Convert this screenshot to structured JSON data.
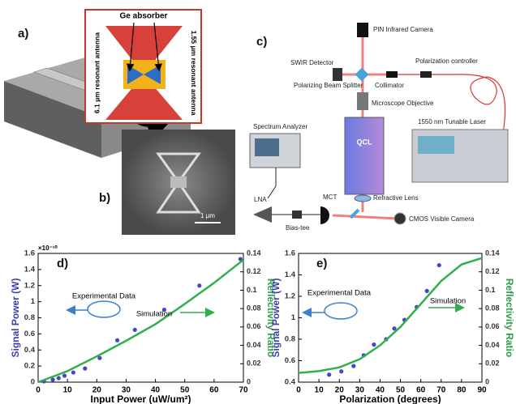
{
  "panels": {
    "a": "a)",
    "b": "b)",
    "c": "c)",
    "d": "d)",
    "e": "e)"
  },
  "diagram_a": {
    "inset_title": "Ge absorber",
    "left_antenna": "6.1 μm resonant antenna",
    "right_antenna": "1.55 μm resonant antenna"
  },
  "sem_b": {
    "scale_bar": "1 μm"
  },
  "setup_c": {
    "pin_camera": "PIN Infrared Camera",
    "swir": "SWIR Detector",
    "pol_controller": "Polarization controller",
    "splitter": "Polarizing Beam Splitter",
    "collimator": "Collimator",
    "objective": "Microscope Objective",
    "analyzer": "Spectrum Analyzer",
    "laser": "1550 nm Tunable Laser",
    "qcl": "QCL",
    "lna": "LNA",
    "mct": "MCT",
    "lens": "Refractive Lens",
    "bias": "Bias-tee",
    "cmos": "CMOS Visible Camera"
  },
  "chart_data": [
    {
      "type": "scatter",
      "xlabel": "Input Power (uW/um²)",
      "ylabel": "Signal Power (W)",
      "y_multiplier": "×10⁻¹⁰",
      "y2label": "Reflectivity Ratio",
      "xlim": [
        0,
        70
      ],
      "xticks": [
        0,
        10,
        20,
        30,
        40,
        50,
        60,
        70
      ],
      "ylim": [
        0,
        1.6
      ],
      "yticks": [
        0,
        0.2,
        0.4,
        0.6,
        0.8,
        1,
        1.2,
        1.4,
        1.6
      ],
      "y2lim": [
        0,
        0.14
      ],
      "y2ticks": [
        0,
        0.02,
        0.04,
        0.06,
        0.08,
        0.1,
        0.12,
        0.14
      ],
      "annotations": [
        "Experimental Data",
        "Simulation"
      ],
      "series": [
        {
          "type": "scatter",
          "color": "#4646c8",
          "x": [
            2,
            5,
            7,
            9,
            12,
            16,
            21,
            27,
            33,
            43,
            55,
            69
          ],
          "values": [
            0.01,
            0.03,
            0.05,
            0.08,
            0.12,
            0.17,
            0.3,
            0.52,
            0.65,
            0.9,
            1.2,
            1.53
          ]
        },
        {
          "type": "line",
          "color": "#2fb04c",
          "axis": "y2",
          "x": [
            0,
            10,
            20,
            30,
            40,
            50,
            60,
            70
          ],
          "values": [
            0,
            0.012,
            0.028,
            0.045,
            0.063,
            0.085,
            0.108,
            0.133
          ]
        }
      ]
    },
    {
      "type": "scatter",
      "xlabel": "Polarization (degrees)",
      "ylabel": "Signal Power (W)",
      "y2label": "Reflectivity Ratio",
      "xlim": [
        0,
        90
      ],
      "xticks": [
        0,
        10,
        20,
        30,
        40,
        50,
        60,
        70,
        80,
        90
      ],
      "ylim": [
        0.4,
        1.6
      ],
      "yticks": [
        0.4,
        0.6,
        0.8,
        1,
        1.2,
        1.4,
        1.6
      ],
      "y2lim": [
        0,
        0.14
      ],
      "y2ticks": [
        0,
        0.02,
        0.04,
        0.06,
        0.08,
        0.1,
        0.12,
        0.14
      ],
      "annotations": [
        "Experimental Data",
        "Simulation"
      ],
      "series": [
        {
          "type": "scatter",
          "color": "#4646c8",
          "x": [
            15,
            21,
            27,
            32,
            37,
            43,
            47,
            52,
            58,
            63,
            69
          ],
          "values": [
            0.47,
            0.5,
            0.55,
            0.65,
            0.75,
            0.8,
            0.9,
            0.98,
            1.1,
            1.25,
            1.49
          ]
        },
        {
          "type": "line",
          "color": "#2fb04c",
          "axis": "y2",
          "x": [
            0,
            10,
            20,
            30,
            40,
            50,
            60,
            70,
            80,
            90
          ],
          "values": [
            0.01,
            0.012,
            0.016,
            0.025,
            0.04,
            0.06,
            0.085,
            0.11,
            0.128,
            0.135
          ]
        }
      ]
    }
  ]
}
